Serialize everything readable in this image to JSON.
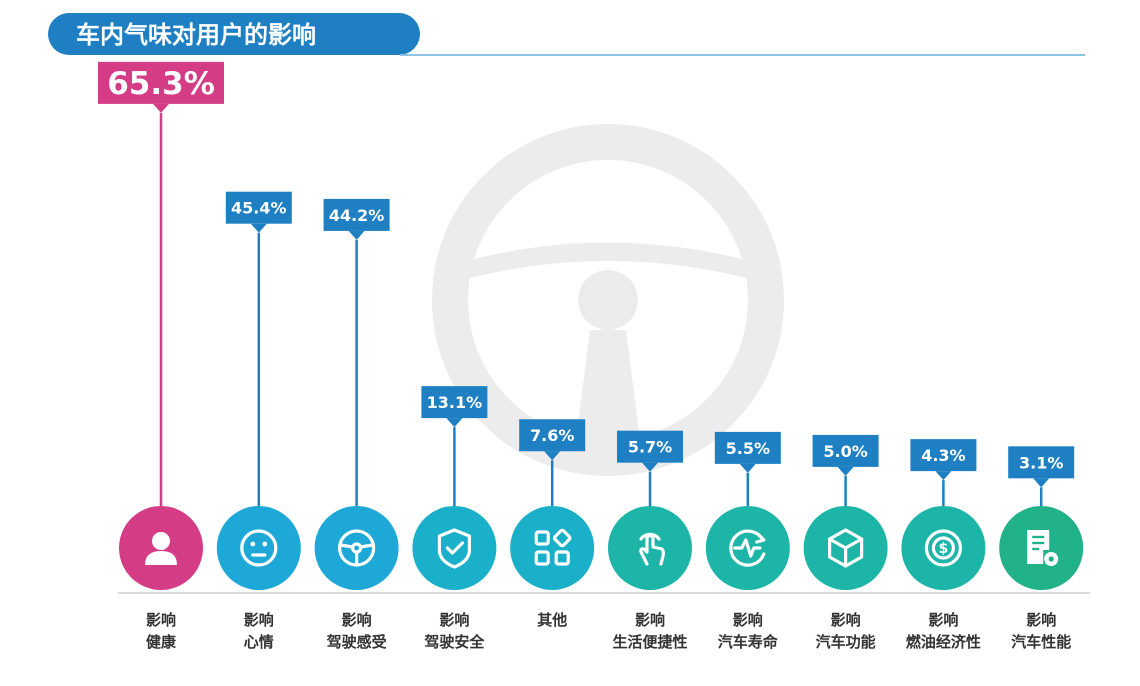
{
  "header": {
    "title": "车内气味对用户的影响"
  },
  "colors": {
    "title_bg": "#1f7fc3",
    "rule": "#8fc3e6",
    "label_blue": "#1f7fc3",
    "label_pink": "#d43d85",
    "stem_blue": "#1f7fc3",
    "stem_pink": "#d43d85",
    "bg_wheel": "#ececec",
    "circle_colors": [
      "#d43d85",
      "#1da8d8",
      "#1da8d8",
      "#1ab0c9",
      "#1ab0c9",
      "#1cb5a7",
      "#1cb5a7",
      "#1cb5a7",
      "#1cb5a7",
      "#22b28a"
    ]
  },
  "chart_data": {
    "type": "bar",
    "title": "车内气味对用户的影响",
    "xlabel": "",
    "ylabel": "",
    "ylim": [
      0,
      70
    ],
    "categories": [
      [
        "影响",
        "健康"
      ],
      [
        "影响",
        "心情"
      ],
      [
        "影响",
        "驾驶感受"
      ],
      [
        "影响",
        "驾驶安全"
      ],
      [
        "其他"
      ],
      [
        "影响",
        "生活便捷性"
      ],
      [
        "影响",
        "汽车寿命"
      ],
      [
        "影响",
        "汽车功能"
      ],
      [
        "影响",
        "燃油经济性"
      ],
      [
        "影响",
        "汽车性能"
      ]
    ],
    "values": [
      65.3,
      45.4,
      44.2,
      13.1,
      7.6,
      5.7,
      5.5,
      5.0,
      4.3,
      3.1
    ],
    "value_labels": [
      "65.3%",
      "45.4%",
      "44.2%",
      "13.1%",
      "7.6%",
      "5.7%",
      "5.5%",
      "5.0%",
      "4.3%",
      "3.1%"
    ],
    "icons": [
      "person-icon",
      "smiley-icon",
      "steering-wheel-icon",
      "shield-check-icon",
      "apps-icon",
      "touch-hand-icon",
      "heartbeat-icon",
      "cube-icon",
      "coin-icon",
      "document-gear-icon"
    ]
  }
}
